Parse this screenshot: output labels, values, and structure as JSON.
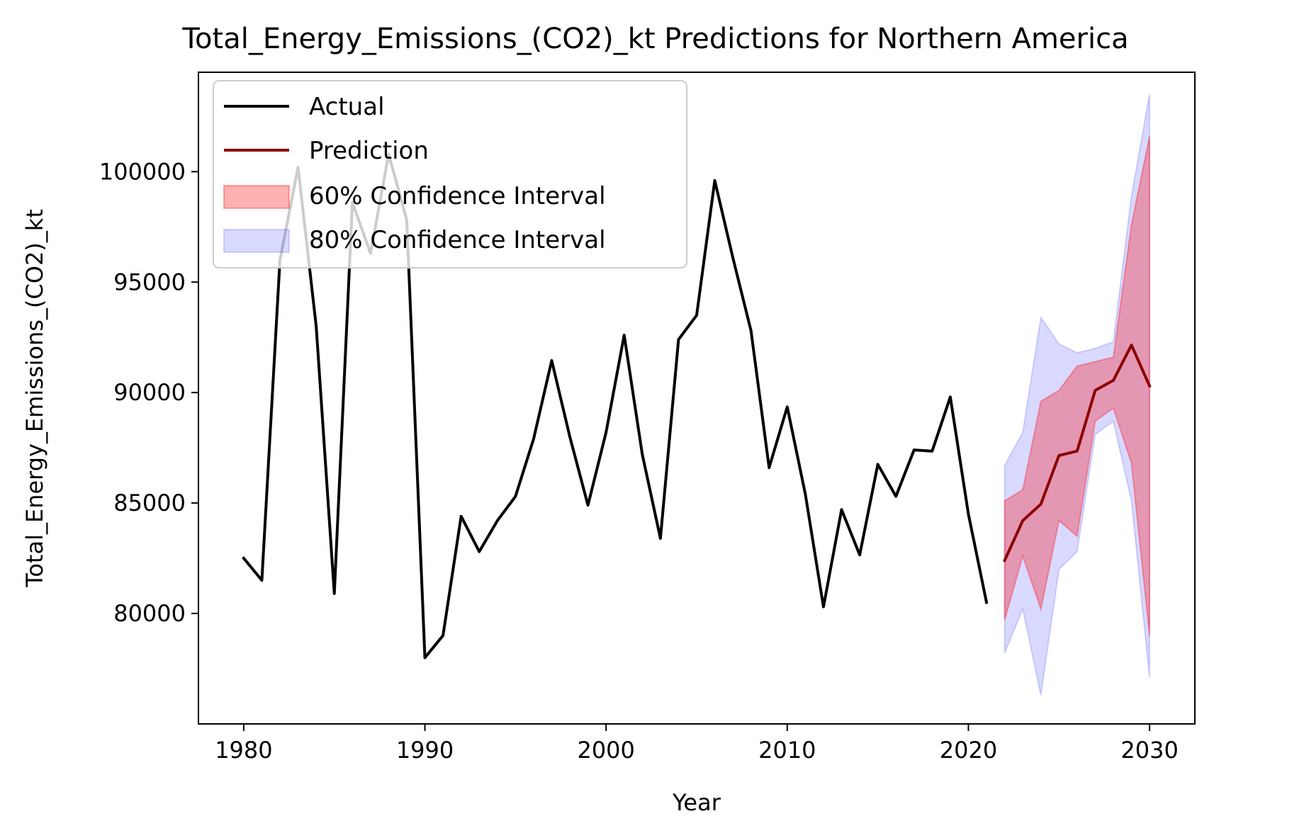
{
  "chart_data": {
    "type": "line",
    "title": "Total_Energy_Emissions_(CO2)_kt Predictions for Northern America",
    "xlabel": "Year",
    "ylabel": "Total_Energy_Emissions_(CO2)_kt",
    "xlim": [
      1977.5,
      2032.5
    ],
    "ylim": [
      75000,
      104500
    ],
    "xticks": [
      1980,
      1990,
      2000,
      2010,
      2020,
      2030
    ],
    "yticks": [
      80000,
      85000,
      90000,
      95000,
      100000
    ],
    "grid": false,
    "legend_position": "top-left",
    "legend": [
      "Actual",
      "Prediction",
      "60% Confidence Interval",
      "80% Confidence Interval"
    ],
    "colors": {
      "actual": "#000000",
      "prediction": "#8b0000",
      "ci60_fill": "#ff0000",
      "ci80_fill": "#0000ff"
    },
    "series": [
      {
        "name": "Actual",
        "x": [
          1980,
          1981,
          1982,
          1983,
          1984,
          1985,
          1986,
          1987,
          1988,
          1989,
          1990,
          1991,
          1992,
          1993,
          1994,
          1995,
          1996,
          1997,
          1998,
          1999,
          2000,
          2001,
          2002,
          2003,
          2004,
          2005,
          2006,
          2007,
          2008,
          2009,
          2010,
          2011,
          2012,
          2013,
          2014,
          2015,
          2016,
          2017,
          2018,
          2019,
          2020,
          2021
        ],
        "y": [
          82500,
          81500,
          96000,
          100200,
          93000,
          80900,
          98600,
          96300,
          100800,
          97800,
          78000,
          79000,
          84400,
          82800,
          84200,
          85300,
          87900,
          91450,
          88000,
          84900,
          88200,
          92600,
          87200,
          83400,
          92400,
          93500,
          99600,
          96100,
          92800,
          86600,
          89350,
          85400,
          80300,
          84700,
          82650,
          86750,
          85300,
          87400,
          87350,
          89800,
          84500,
          80500
        ]
      },
      {
        "name": "Prediction",
        "x": [
          2022,
          2023,
          2024,
          2025,
          2026,
          2027,
          2028,
          2029,
          2030
        ],
        "y": [
          82400,
          84200,
          84950,
          87150,
          87350,
          90100,
          90550,
          92150,
          90300
        ]
      },
      {
        "name": "60% Confidence Interval",
        "x": [
          2022,
          2023,
          2024,
          2025,
          2026,
          2027,
          2028,
          2029,
          2030
        ],
        "lower": [
          79700,
          82600,
          80200,
          84200,
          83500,
          88700,
          89300,
          86800,
          79000
        ],
        "upper": [
          85100,
          85600,
          89600,
          90100,
          91200,
          91400,
          91600,
          97600,
          101600
        ]
      },
      {
        "name": "80% Confidence Interval",
        "x": [
          2022,
          2023,
          2024,
          2025,
          2026,
          2027,
          2028,
          2029,
          2030
        ],
        "lower": [
          78200,
          80200,
          76300,
          82000,
          82800,
          88100,
          88700,
          85100,
          77100
        ],
        "upper": [
          86700,
          88200,
          93400,
          92200,
          91800,
          92000,
          92300,
          98900,
          103500
        ]
      }
    ]
  }
}
